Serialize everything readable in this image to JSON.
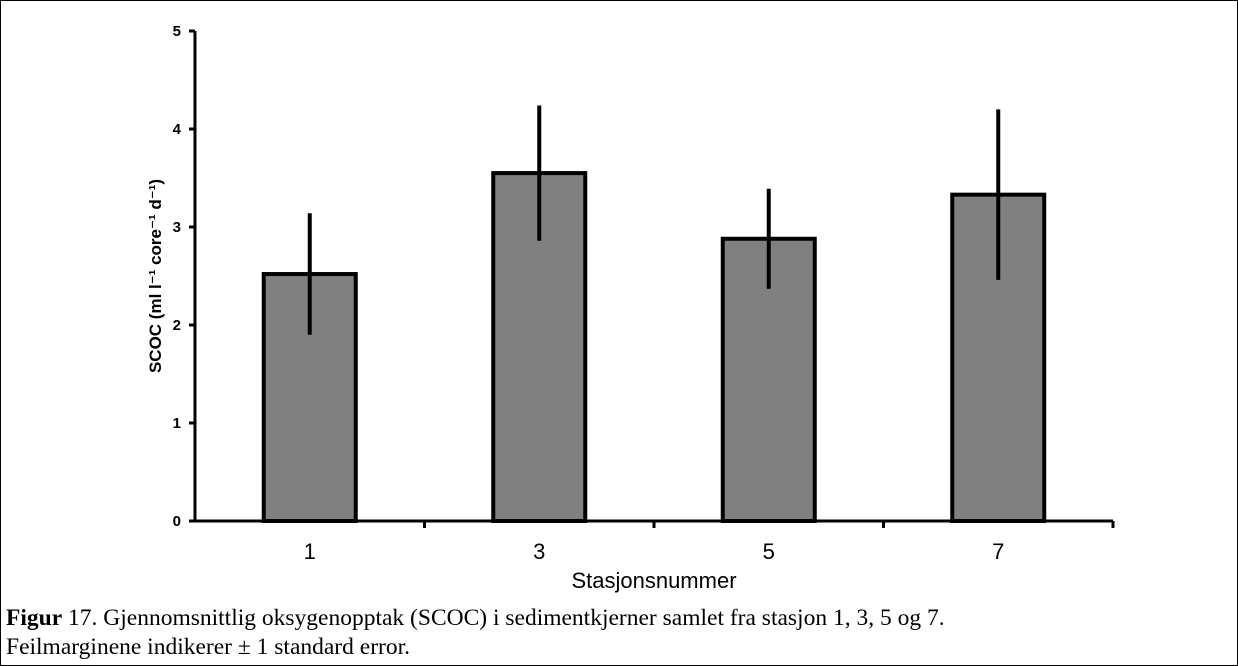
{
  "chart_data": {
    "type": "bar",
    "categories": [
      "1",
      "3",
      "5",
      "7"
    ],
    "values": [
      2.52,
      3.55,
      2.88,
      3.33
    ],
    "errors": [
      0.62,
      0.69,
      0.51,
      0.87
    ],
    "xlabel": "Stasjonsnummer",
    "ylabel": "SCOC (ml l⁻¹ core⁻¹ d⁻¹)",
    "ylim": [
      0,
      5
    ],
    "yticks": [
      0,
      1,
      2,
      3,
      4,
      5
    ],
    "bar_color": "#808080",
    "grid": false,
    "legend": "none"
  },
  "caption": {
    "label": "Figur",
    "text": " 17. Gjennomsnittlig oksygenopptak (SCOC) i sedimentkjerner samlet fra stasjon 1, 3, 5 og 7.",
    "line2": "Feilmarginene indikerer ± 1 standard error."
  }
}
